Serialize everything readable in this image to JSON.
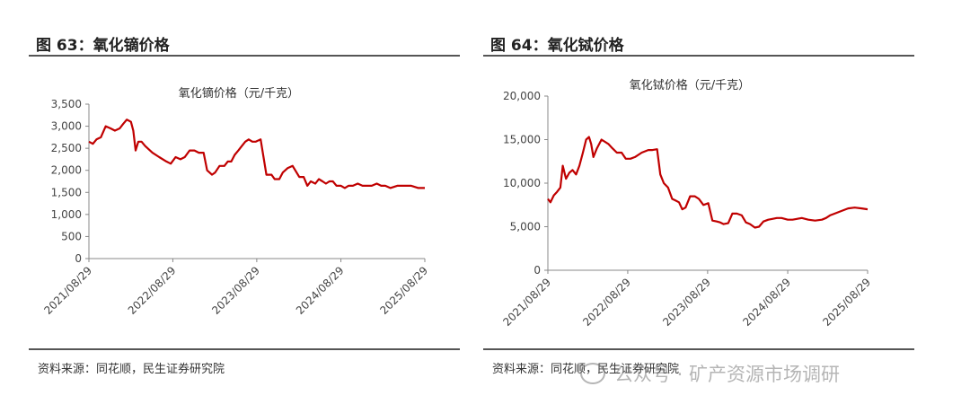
{
  "colors": {
    "line": "#c00000",
    "axis": "#888888",
    "rule": "#555555"
  },
  "panels": [
    {
      "figure_title": "图 63：氧化镝价格",
      "source": "资料来源：同花顺，民生证券研究院"
    },
    {
      "figure_title": "图 64：氧化铽价格",
      "source": "资料来源：同花顺，民生证券研究院"
    }
  ],
  "watermark": {
    "text": "公众号 · 矿产资源市场调研",
    "icon": "wechat-icon"
  },
  "chart_data": [
    {
      "type": "line",
      "title": "氧化镝价格（元/千克）",
      "ylim": [
        0,
        3500
      ],
      "yticks": [
        0,
        500,
        1000,
        1500,
        2000,
        2500,
        3000,
        3500
      ],
      "ytick_labels": [
        "0",
        "500",
        "1,000",
        "1,500",
        "2,000",
        "2,500",
        "3,000",
        "3,500"
      ],
      "xlim": [
        "2021/08/29",
        "2025/08/29"
      ],
      "xticks": [
        "2021/08/29",
        "2022/08/29",
        "2023/08/29",
        "2024/08/29",
        "2025/08/29"
      ],
      "series": [
        {
          "x": [
            "2021/08/29",
            "2021/09/15",
            "2021/10/01",
            "2021/10/20",
            "2021/11/10",
            "2021/12/01",
            "2021/12/20",
            "2022/01/10",
            "2022/01/25",
            "2022/02/10",
            "2022/02/28",
            "2022/03/10",
            "2022/03/20",
            "2022/04/01",
            "2022/04/15",
            "2022/05/01",
            "2022/06/01",
            "2022/07/01",
            "2022/08/01",
            "2022/08/20",
            "2022/09/10",
            "2022/10/01",
            "2022/10/20",
            "2022/11/10",
            "2022/12/01",
            "2022/12/20",
            "2023/01/10",
            "2023/01/25",
            "2023/02/05",
            "2023/02/15",
            "2023/03/01",
            "2023/03/20",
            "2023/04/10",
            "2023/04/25",
            "2023/05/10",
            "2023/05/25",
            "2023/06/10",
            "2023/06/25",
            "2023/07/10",
            "2023/07/25",
            "2023/08/10",
            "2023/08/25",
            "2023/09/15",
            "2023/10/10",
            "2023/11/01",
            "2023/11/15",
            "2023/11/25",
            "2023/12/05",
            "2023/12/20",
            "2024/01/10",
            "2024/02/01",
            "2024/03/01",
            "2024/03/20",
            "2024/04/05",
            "2024/04/20",
            "2024/05/10",
            "2024/05/25",
            "2024/06/10",
            "2024/06/25",
            "2024/07/10",
            "2024/07/25",
            "2024/08/10",
            "2024/08/29",
            "2024/09/15",
            "2024/10/01",
            "2024/10/20",
            "2024/11/10",
            "2024/12/01",
            "2024/12/20",
            "2025/01/10",
            "2025/02/01",
            "2025/02/20",
            "2025/03/10",
            "2025/04/01",
            "2025/05/01",
            "2025/06/01",
            "2025/07/01",
            "2025/08/01",
            "2025/08/29"
          ],
          "y": [
            2650,
            2600,
            2700,
            2750,
            3000,
            2950,
            2900,
            2950,
            3050,
            3150,
            3100,
            2900,
            2450,
            2650,
            2650,
            2550,
            2400,
            2300,
            2200,
            2150,
            2300,
            2250,
            2300,
            2450,
            2450,
            2400,
            2400,
            2000,
            1950,
            1900,
            1950,
            2100,
            2100,
            2200,
            2200,
            2350,
            2450,
            2550,
            2650,
            2700,
            2650,
            2650,
            2700,
            1900,
            1900,
            1800,
            1800,
            1800,
            1950,
            2050,
            2100,
            1850,
            1850,
            1650,
            1750,
            1700,
            1800,
            1750,
            1700,
            1750,
            1750,
            1650,
            1650,
            1600,
            1650,
            1650,
            1700,
            1650,
            1650,
            1650,
            1700,
            1650,
            1650,
            1600,
            1650,
            1650,
            1650,
            1600,
            1600
          ]
        }
      ]
    },
    {
      "type": "line",
      "title": "氧化铽价格（元/千克）",
      "ylim": [
        0,
        20000
      ],
      "yticks": [
        0,
        5000,
        10000,
        15000,
        20000
      ],
      "ytick_labels": [
        "0",
        "5,000",
        "10,000",
        "15,000",
        "20,000"
      ],
      "xlim": [
        "2021/08/29",
        "2025/08/29"
      ],
      "xticks": [
        "2021/08/29",
        "2022/08/29",
        "2023/08/29",
        "2024/08/29",
        "2025/08/29"
      ],
      "series": [
        {
          "x": [
            "2021/08/29",
            "2021/09/10",
            "2021/09/25",
            "2021/10/10",
            "2021/10/25",
            "2021/11/05",
            "2021/11/20",
            "2021/12/05",
            "2021/12/20",
            "2022/01/05",
            "2022/01/20",
            "2022/02/05",
            "2022/02/20",
            "2022/03/05",
            "2022/03/15",
            "2022/03/25",
            "2022/04/10",
            "2022/05/01",
            "2022/06/01",
            "2022/06/20",
            "2022/07/10",
            "2022/08/01",
            "2022/08/20",
            "2022/09/10",
            "2022/10/01",
            "2022/11/01",
            "2022/12/01",
            "2022/12/20",
            "2023/01/10",
            "2023/01/25",
            "2023/02/10",
            "2023/03/01",
            "2023/03/20",
            "2023/04/05",
            "2023/04/20",
            "2023/05/05",
            "2023/05/20",
            "2023/06/10",
            "2023/07/01",
            "2023/07/20",
            "2023/08/10",
            "2023/09/01",
            "2023/09/20",
            "2023/10/10",
            "2023/10/25",
            "2023/11/10",
            "2023/12/01",
            "2023/12/20",
            "2024/01/10",
            "2024/02/01",
            "2024/02/20",
            "2024/03/10",
            "2024/04/01",
            "2024/04/20",
            "2024/05/10",
            "2024/06/01",
            "2024/06/20",
            "2024/07/10",
            "2024/08/01",
            "2024/08/29",
            "2024/09/20",
            "2024/10/10",
            "2024/11/01",
            "2024/12/01",
            "2025/01/01",
            "2025/02/01",
            "2025/02/20",
            "2025/03/10",
            "2025/04/01",
            "2025/05/01",
            "2025/06/01",
            "2025/07/01",
            "2025/08/01",
            "2025/08/29"
          ],
          "y": [
            8200,
            7800,
            8600,
            9000,
            9500,
            12000,
            10500,
            11200,
            11500,
            11000,
            12000,
            13500,
            15000,
            15300,
            14500,
            13000,
            14000,
            15000,
            14500,
            14000,
            13500,
            13500,
            12800,
            12800,
            13000,
            13500,
            13800,
            13800,
            13900,
            11000,
            10000,
            9500,
            8200,
            8000,
            7800,
            7000,
            7200,
            8500,
            8500,
            8200,
            7500,
            7700,
            5700,
            5600,
            5500,
            5300,
            5400,
            6500,
            6500,
            6300,
            5500,
            5300,
            4900,
            5000,
            5600,
            5800,
            5900,
            6000,
            6000,
            5800,
            5800,
            5900,
            6000,
            5800,
            5700,
            5800,
            6000,
            6300,
            6500,
            6800,
            7100,
            7200,
            7100,
            7000
          ]
        }
      ]
    }
  ]
}
